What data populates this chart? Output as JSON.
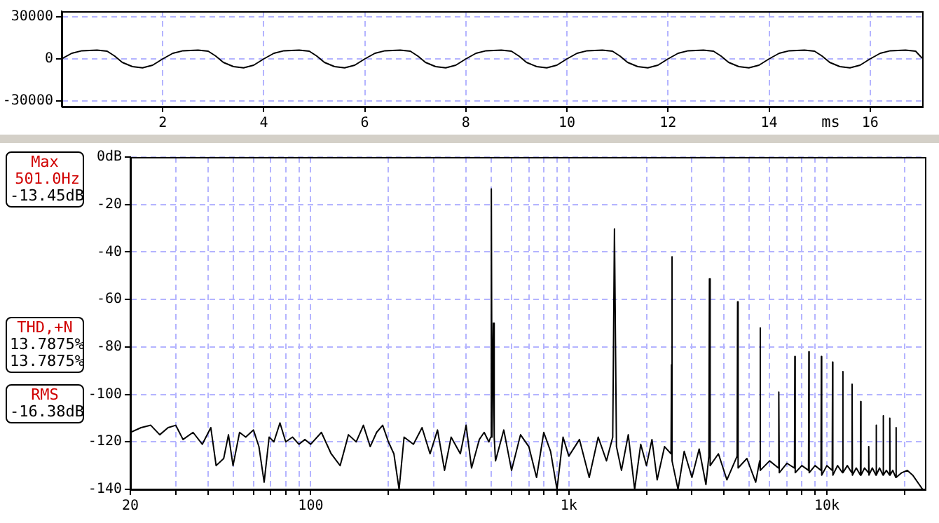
{
  "chart_data": [
    {
      "type": "line",
      "xlabel": "ms",
      "x": [
        0,
        0.2,
        0.4,
        0.7,
        0.9,
        1.05,
        1.2,
        1.4,
        1.6,
        1.8,
        2,
        2.2,
        2.4,
        2.7,
        2.9,
        3.05,
        3.2,
        3.4,
        3.6,
        3.8,
        4,
        4.2,
        4.4,
        4.7,
        4.9,
        5.05,
        5.2,
        5.4,
        5.6,
        5.8,
        6,
        6.2,
        6.4,
        6.7,
        6.9,
        7.05,
        7.2,
        7.4,
        7.6,
        7.8,
        8,
        8.2,
        8.4,
        8.7,
        8.9,
        9.05,
        9.2,
        9.4,
        9.6,
        9.8,
        10,
        10.2,
        10.4,
        10.7,
        10.9,
        11.05,
        11.2,
        11.4,
        11.6,
        11.8,
        12,
        12.2,
        12.4,
        12.7,
        12.9,
        13.05,
        13.2,
        13.4,
        13.6,
        13.8,
        14,
        14.2,
        14.4,
        14.7,
        14.9,
        15.05,
        15.2,
        15.4,
        15.6,
        15.8,
        16,
        16.2,
        16.4,
        16.7,
        16.9,
        17.03
      ],
      "series": [
        {
          "color": "#000000",
          "values": [
            0,
            4000,
            5800,
            6300,
            5500,
            2000,
            -2500,
            -5500,
            -6400,
            -4500,
            0,
            4000,
            5800,
            6300,
            5500,
            2000,
            -2500,
            -5500,
            -6400,
            -4500,
            0,
            4000,
            5800,
            6300,
            5500,
            2000,
            -2500,
            -5500,
            -6400,
            -4500,
            0,
            4000,
            5800,
            6300,
            5500,
            2000,
            -2500,
            -5500,
            -6400,
            -4500,
            0,
            4000,
            5800,
            6300,
            5500,
            2000,
            -2500,
            -5500,
            -6400,
            -4500,
            0,
            4000,
            5800,
            6300,
            5500,
            2000,
            -2500,
            -5500,
            -6400,
            -4500,
            0,
            4000,
            5800,
            6300,
            5500,
            2000,
            -2500,
            -5500,
            -6400,
            -4500,
            0,
            4000,
            5800,
            6300,
            5500,
            2000,
            -2500,
            -5500,
            -6400,
            -4500,
            0,
            4000,
            5800,
            6300,
            5500,
            500
          ]
        }
      ],
      "xlim": [
        0,
        17.03
      ],
      "xticks": [
        2,
        4,
        6,
        8,
        10,
        12,
        14,
        16
      ],
      "ylim": [
        -34000,
        34000
      ],
      "yticks": [
        -30000,
        0,
        30000
      ],
      "grid": true,
      "legend": false
    },
    {
      "type": "line",
      "log": "x",
      "x": [
        20,
        22,
        24,
        26,
        28,
        30,
        32,
        35,
        38,
        41,
        43,
        46,
        48,
        50,
        53,
        56,
        60,
        63,
        66,
        69,
        72,
        76,
        80,
        85,
        90,
        95,
        100,
        110,
        120,
        130,
        140,
        150,
        160,
        170,
        180,
        190,
        200,
        210,
        220,
        230,
        250,
        270,
        290,
        310,
        330,
        350,
        380,
        400,
        420,
        450,
        470,
        490,
        498,
        501,
        504,
        510,
        514,
        520,
        560,
        600,
        650,
        700,
        750,
        800,
        850,
        900,
        950,
        1000,
        1100,
        1200,
        1300,
        1400,
        1480,
        1503,
        1530,
        1600,
        1700,
        1800,
        1900,
        2000,
        2100,
        2200,
        2350,
        2490,
        2500,
        2505,
        2520,
        2650,
        2800,
        3000,
        3200,
        3400,
        3490,
        3507,
        3530,
        3800,
        4100,
        4490,
        4509,
        4530,
        4900,
        5300,
        5490,
        5511,
        5530,
        6000,
        6490,
        6513,
        6540,
        7000,
        7490,
        7515,
        7540,
        8000,
        8490,
        8517,
        8540,
        9000,
        9490,
        9519,
        9550,
        10000,
        10490,
        10521,
        10550,
        11000,
        11490,
        11523,
        11560,
        12000,
        12490,
        12525,
        12560,
        13000,
        13490,
        13527,
        13560,
        14000,
        14500,
        14529,
        14560,
        15000,
        15500,
        15531,
        15560,
        16000,
        16500,
        16533,
        16570,
        17000,
        17500,
        17535,
        17570,
        18000,
        18500,
        18537,
        18570,
        19500,
        20500,
        21500,
        23500
      ],
      "series": [
        {
          "color": "#000000",
          "values": [
            -116,
            -114,
            -113,
            -117,
            -114,
            -113,
            -119,
            -116,
            -121,
            -114,
            -130,
            -127,
            -117,
            -130,
            -116,
            -118,
            -115,
            -122,
            -137,
            -118,
            -120,
            -112,
            -120,
            -118,
            -121,
            -119,
            -121,
            -116,
            -125,
            -130,
            -117,
            -120,
            -113,
            -122,
            -116,
            -113,
            -120,
            -125,
            -140,
            -118,
            -121,
            -114,
            -125,
            -115,
            -132,
            -118,
            -125,
            -113,
            -131,
            -119,
            -116,
            -120,
            -118,
            -13.45,
            -118,
            -70,
            -118,
            -128,
            -115,
            -132,
            -117,
            -122,
            -135,
            -116,
            -124,
            -140,
            -118,
            -126,
            -119,
            -135,
            -118,
            -128,
            -118,
            -30.3,
            -122,
            -132,
            -117,
            -140,
            -121,
            -130,
            -119,
            -136,
            -122,
            -125,
            -87.5,
            -42,
            -128,
            -140,
            -124,
            -135,
            -123,
            -138,
            -126,
            -51.3,
            -130,
            -125,
            -136,
            -126,
            -61,
            -131,
            -127,
            -137,
            -128,
            -72,
            -132,
            -128,
            -131,
            -99,
            -133,
            -129,
            -131,
            -84,
            -133,
            -130,
            -132,
            -82,
            -133,
            -130,
            -132,
            -84,
            -134,
            -130,
            -132,
            -86.4,
            -134,
            -130,
            -133,
            -90.4,
            -133,
            -130,
            -133,
            -95.7,
            -134,
            -131,
            -134,
            -103,
            -134,
            -131,
            -133,
            -122,
            -134,
            -131,
            -134,
            -113,
            -134,
            -131,
            -134,
            -109,
            -134,
            -132,
            -134,
            -110,
            -134,
            -132,
            -135,
            -114,
            -135,
            -133,
            -132,
            -134,
            -140
          ]
        }
      ],
      "xlim": [
        20,
        24000
      ],
      "xticks": [
        20,
        {
          "value": 30,
          "label": null
        },
        {
          "value": 40,
          "label": null
        },
        {
          "value": 50,
          "label": null
        },
        {
          "value": 60,
          "label": null
        },
        {
          "value": 70,
          "label": null
        },
        {
          "value": 80,
          "label": null
        },
        {
          "value": 90,
          "label": null
        },
        100,
        {
          "value": 200,
          "label": null
        },
        {
          "value": 300,
          "label": null
        },
        {
          "value": 400,
          "label": null
        },
        {
          "value": 500,
          "label": null
        },
        {
          "value": 600,
          "label": null
        },
        {
          "value": 700,
          "label": null
        },
        {
          "value": 800,
          "label": null
        },
        {
          "value": 900,
          "label": null
        },
        {
          "value": 1000,
          "label": "1k"
        },
        {
          "value": 2000,
          "label": null
        },
        {
          "value": 3000,
          "label": null
        },
        {
          "value": 4000,
          "label": null
        },
        {
          "value": 5000,
          "label": null
        },
        {
          "value": 6000,
          "label": null
        },
        {
          "value": 7000,
          "label": null
        },
        {
          "value": 8000,
          "label": null
        },
        {
          "value": 9000,
          "label": null
        },
        {
          "value": 10000,
          "label": "10k"
        },
        {
          "value": 20000,
          "label": null
        }
      ],
      "ylim": [
        -140,
        0
      ],
      "yticks": [
        -140,
        -120,
        -100,
        -80,
        -60,
        -40,
        -20,
        {
          "value": 0,
          "label": "0dB"
        }
      ],
      "grid": true,
      "legend": false,
      "annotations": [
        "Max\n501.0Hz\n-13.45dB",
        "THD,+N\n13.7875%\n13.7875%",
        "RMS\n-16.38dB"
      ]
    }
  ]
}
